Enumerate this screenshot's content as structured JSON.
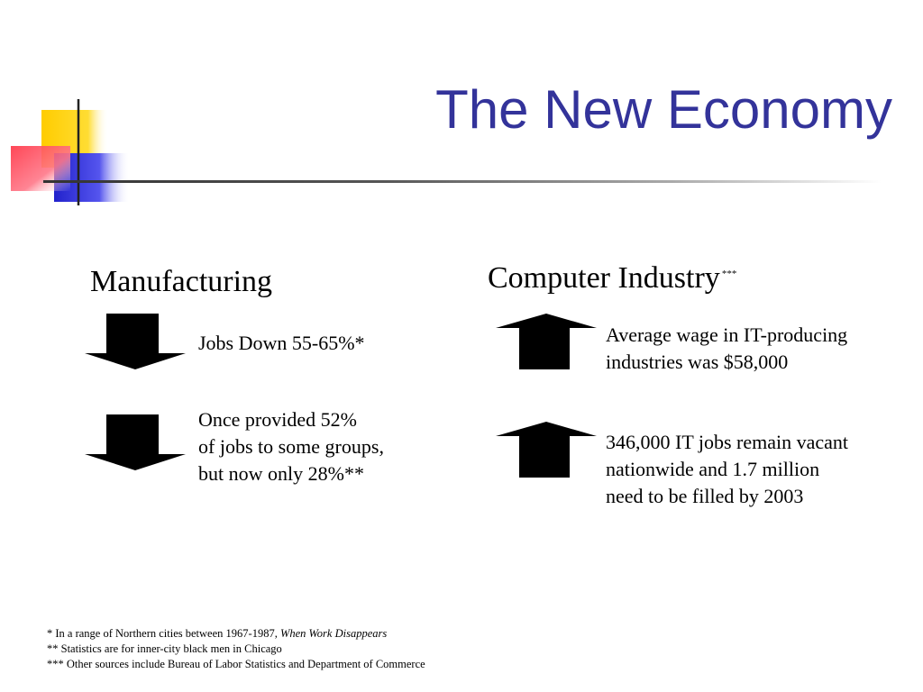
{
  "slide": {
    "title": "The New Economy"
  },
  "colors": {
    "title": "#33339a",
    "accent_yellow": "#ffcc00",
    "accent_red": "#ff3344",
    "accent_blue": "#2222cc"
  },
  "manufacturing": {
    "heading": "Manufacturing",
    "points": [
      {
        "icon": "down-arrow-icon",
        "lines": [
          "Jobs Down 55-65%*"
        ]
      },
      {
        "icon": "down-arrow-icon",
        "lines": [
          "Once provided 52%",
          "of jobs to some groups,",
          "but now only 28%**"
        ]
      }
    ]
  },
  "computer_industry": {
    "heading": "Computer Industry",
    "heading_note": "***",
    "points": [
      {
        "icon": "up-arrow-icon",
        "lines": [
          "Average wage in IT-producing",
          "industries was $58,000"
        ]
      },
      {
        "icon": "up-arrow-icon",
        "lines": [
          "346,000 IT jobs remain vacant",
          "nationwide and 1.7 million",
          "need to be filled by 2003"
        ]
      }
    ]
  },
  "footnotes": [
    {
      "text": "* In a range of Northern cities between 1967-1987, ",
      "source": "When Work Disappears"
    },
    {
      "text": "** Statistics are for inner-city black men in Chicago"
    },
    {
      "text": "*** Other sources include Bureau of Labor Statistics and Department of Commerce"
    }
  ]
}
